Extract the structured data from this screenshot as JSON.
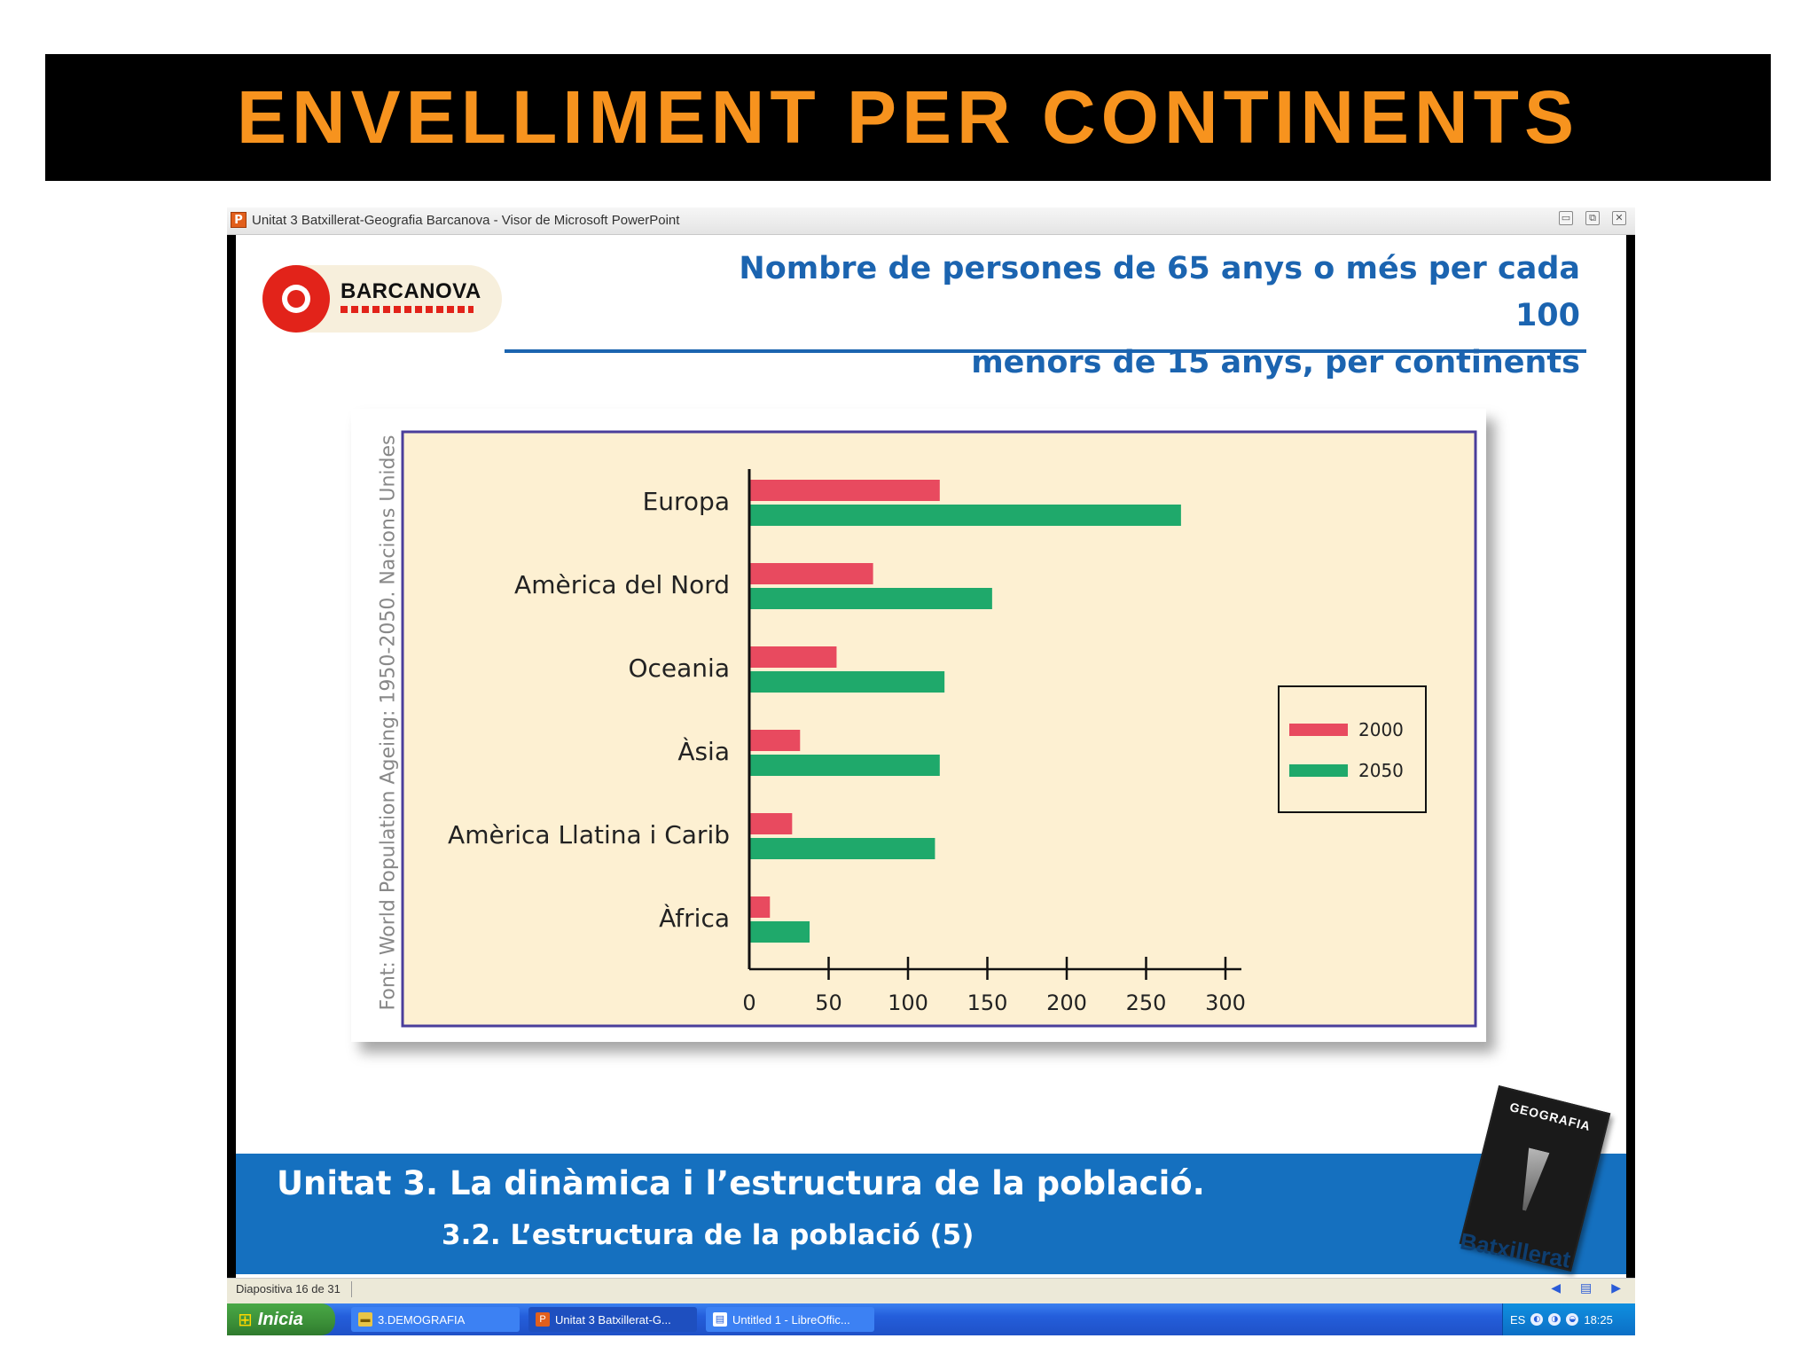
{
  "banner": {
    "title": "ENVELLIMENT PER CONTINENTS"
  },
  "window": {
    "app_icon": "P",
    "title": "Unitat 3 Batxillerat-Geografia Barcanova - Visor de Microsoft PowerPoint",
    "controls": {
      "minimize": "▭",
      "restore": "⧉",
      "close": "✕"
    }
  },
  "slide": {
    "logo_text": "BARCANOVA",
    "title_line1": "Nombre de persones de 65 anys o més per cada 100",
    "title_line2": "menors de 15 anys, per continents",
    "source": "Font: World Population Ageing: 1950-2050. Nacions Unides",
    "unit_title": "Unitat 3. La dinàmica i l’estructura de la població.",
    "unit_subtitle": "3.2. L’estructura de la població (5)",
    "book_title": "GEOGRAFIA",
    "book_label": "Batxillerat"
  },
  "chart_data": {
    "type": "bar",
    "orientation": "horizontal",
    "categories": [
      "Europa",
      "Amèrica del Nord",
      "Oceania",
      "Àsia",
      "Amèrica Llatina i Carib",
      "Àfrica"
    ],
    "series": [
      {
        "name": "2000",
        "color": "#e84a5f",
        "values": [
          120,
          78,
          55,
          32,
          27,
          13
        ]
      },
      {
        "name": "2050",
        "color": "#1fa96b",
        "values": [
          272,
          153,
          123,
          120,
          117,
          38
        ]
      }
    ],
    "xlim": [
      0,
      300
    ],
    "xticks": [
      "0",
      "50",
      "100",
      "150",
      "200",
      "250",
      "300"
    ],
    "legend": "right",
    "grid": false
  },
  "statusbar": {
    "slide_counter": "Diapositiva 16 de 31"
  },
  "taskbar": {
    "start_label": "Inicia",
    "tasks": [
      {
        "label": "3.DEMOGRAFIA",
        "icon": "folder-icon"
      },
      {
        "label": "Unitat 3 Batxillerat-G...",
        "icon": "powerpoint-icon"
      },
      {
        "label": "Untitled 1 - LibreOffic...",
        "icon": "document-icon"
      }
    ],
    "tray_lang": "ES",
    "clock": "18:25"
  },
  "colors": {
    "banner_text": "#f7931e",
    "slide_blue": "#1b64b0",
    "chart_bg": "#fdf0d2",
    "chart_border": "#4a3e9b"
  }
}
